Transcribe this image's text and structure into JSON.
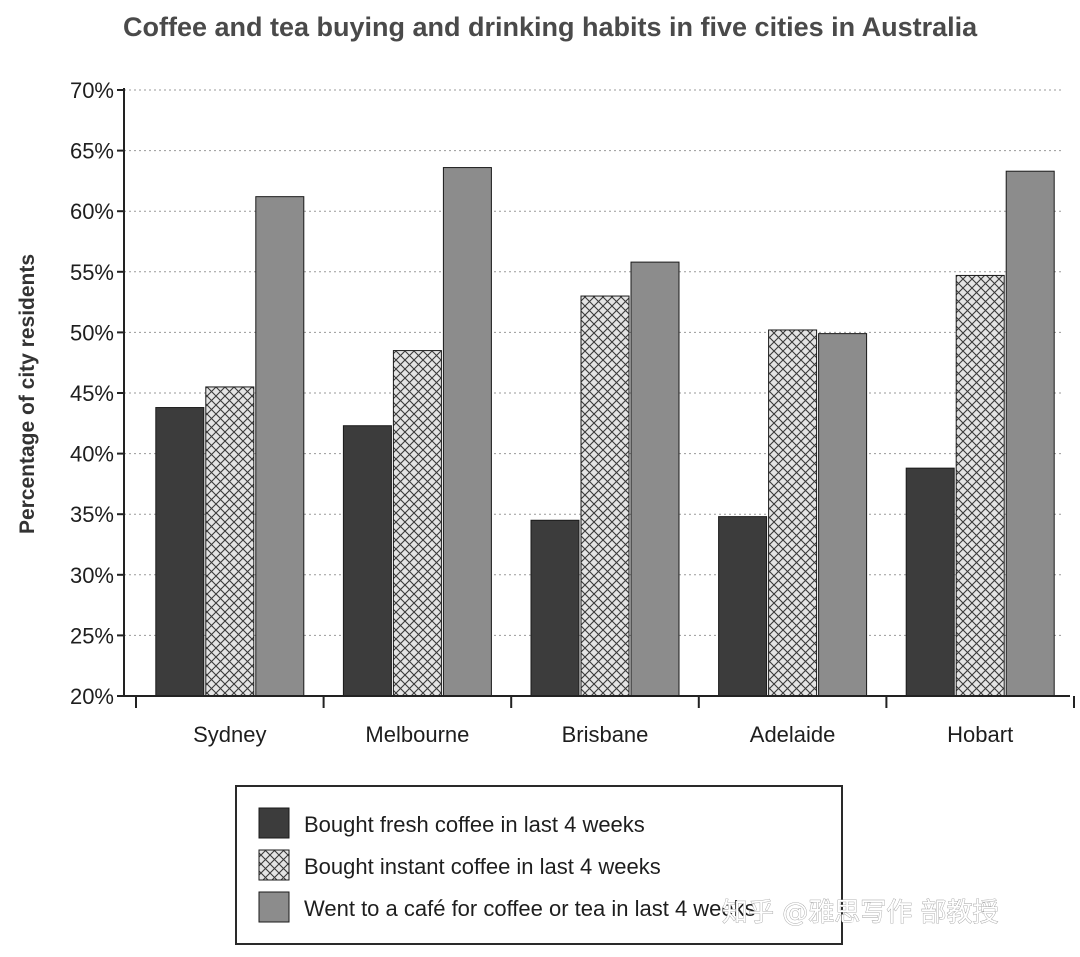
{
  "chart_data": {
    "type": "bar",
    "title": "Coffee and tea buying and drinking habits in five cities in Australia",
    "xlabel": "",
    "ylabel": "Percentage of city residents",
    "ylim": [
      20,
      70
    ],
    "yticks": [
      "20%",
      "25%",
      "30%",
      "35%",
      "40%",
      "45%",
      "50%",
      "55%",
      "60%",
      "65%",
      "70%"
    ],
    "grid": "horizontal dotted",
    "legend_position": "bottom",
    "categories": [
      "Sydney",
      "Melbourne",
      "Brisbane",
      "Adelaide",
      "Hobart"
    ],
    "series": [
      {
        "name": "Bought fresh coffee in last 4 weeks",
        "pattern": "solid-dark",
        "color": "#3c3c3c",
        "values": [
          43.8,
          42.3,
          34.5,
          34.8,
          38.8
        ]
      },
      {
        "name": "Bought instant coffee in last 4 weeks",
        "pattern": "crosshatch",
        "color": "#e2e2e2",
        "values": [
          45.5,
          48.5,
          53.0,
          50.2,
          54.7
        ]
      },
      {
        "name": "Went to a café for coffee or tea in last 4 weeks",
        "pattern": "solid-medium",
        "color": "#8c8c8c",
        "values": [
          61.2,
          63.6,
          55.8,
          49.9,
          63.3
        ]
      }
    ]
  },
  "watermark": "知乎 @雅思写作 部教授"
}
